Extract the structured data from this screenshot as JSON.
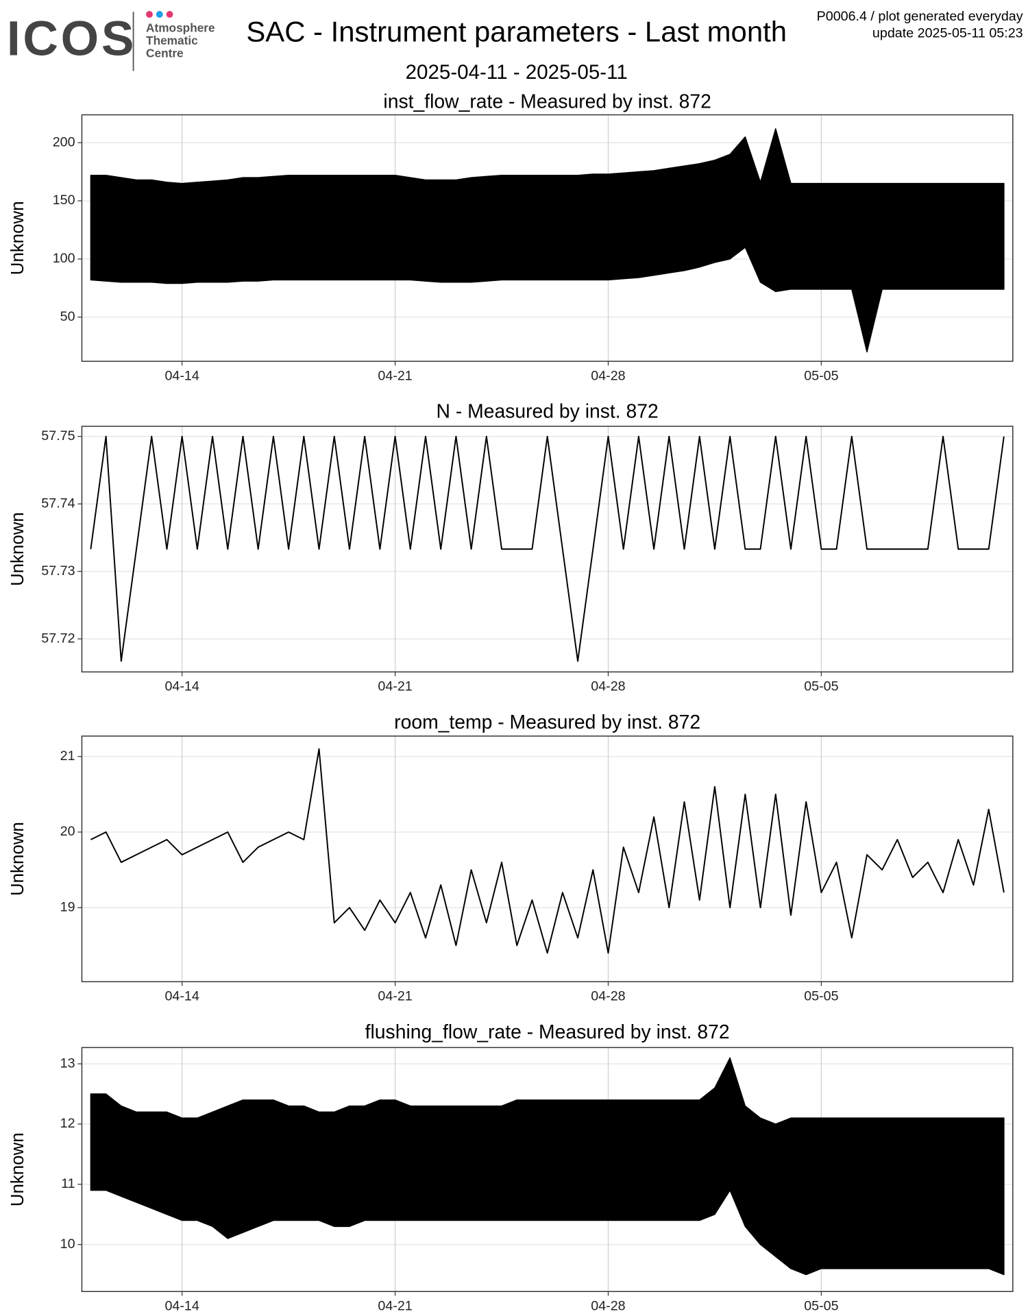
{
  "header": {
    "logo": "ICOS",
    "logo_lines": [
      "Atmosphere",
      "Thematic",
      "Centre"
    ],
    "title": "SAC - Instrument parameters - Last month",
    "subtitle": "2025-04-11 - 2025-05-11",
    "note": "P0006.4 / plot generated everyday",
    "update": "update  2025-05-11 05:23"
  },
  "chart_data": [
    {
      "type": "band",
      "title": "inst_flow_rate - Measured by inst. 872",
      "y_label": "Unknown",
      "color": "#000000",
      "grid": true,
      "x": [
        "2025-04-11 00:00",
        "2025-04-11 12:00",
        "2025-04-12 00:00",
        "2025-04-12 12:00",
        "2025-04-13 00:00",
        "2025-04-13 12:00",
        "2025-04-14 00:00",
        "2025-04-14 12:00",
        "2025-04-15 00:00",
        "2025-04-15 12:00",
        "2025-04-16 00:00",
        "2025-04-16 12:00",
        "2025-04-17 00:00",
        "2025-04-17 12:00",
        "2025-04-18 00:00",
        "2025-04-18 12:00",
        "2025-04-19 00:00",
        "2025-04-19 12:00",
        "2025-04-20 00:00",
        "2025-04-20 12:00",
        "2025-04-21 00:00",
        "2025-04-21 12:00",
        "2025-04-22 00:00",
        "2025-04-22 12:00",
        "2025-04-23 00:00",
        "2025-04-23 12:00",
        "2025-04-24 00:00",
        "2025-04-24 12:00",
        "2025-04-25 00:00",
        "2025-04-25 12:00",
        "2025-04-26 00:00",
        "2025-04-26 12:00",
        "2025-04-27 00:00",
        "2025-04-27 12:00",
        "2025-04-28 00:00",
        "2025-04-28 12:00",
        "2025-04-29 00:00",
        "2025-04-29 12:00",
        "2025-04-30 00:00",
        "2025-04-30 12:00",
        "2025-05-01 00:00",
        "2025-05-01 12:00",
        "2025-05-02 00:00",
        "2025-05-02 12:00",
        "2025-05-03 00:00",
        "2025-05-03 12:00",
        "2025-05-04 00:00",
        "2025-05-04 12:00",
        "2025-05-05 00:00",
        "2025-05-05 12:00",
        "2025-05-06 00:00",
        "2025-05-06 12:00",
        "2025-05-07 00:00",
        "2025-05-07 12:00",
        "2025-05-08 00:00",
        "2025-05-08 12:00",
        "2025-05-09 00:00",
        "2025-05-09 12:00",
        "2025-05-10 00:00",
        "2025-05-10 12:00",
        "2025-05-11 00:00"
      ],
      "series": [
        {
          "values": [
            82,
            81,
            80,
            80,
            80,
            79,
            79,
            80,
            80,
            80,
            81,
            81,
            82,
            82,
            82,
            82,
            82,
            82,
            82,
            82,
            82,
            82,
            81,
            80,
            80,
            80,
            81,
            82,
            82,
            82,
            82,
            82,
            82,
            82,
            82,
            83,
            84,
            86,
            88,
            90,
            93,
            97,
            100,
            110,
            80,
            72,
            74,
            74,
            74,
            74,
            74,
            20,
            74,
            74,
            74,
            74,
            74,
            74,
            74,
            74,
            74
          ]
        },
        {
          "values": [
            172,
            172,
            170,
            168,
            168,
            166,
            165,
            166,
            167,
            168,
            170,
            170,
            171,
            172,
            172,
            172,
            172,
            172,
            172,
            172,
            172,
            170,
            168,
            168,
            168,
            170,
            171,
            172,
            172,
            172,
            172,
            172,
            172,
            173,
            173,
            174,
            175,
            176,
            178,
            180,
            182,
            185,
            190,
            205,
            166,
            212,
            165,
            165,
            165,
            165,
            165,
            165,
            165,
            165,
            165,
            165,
            165,
            165,
            165,
            165,
            165
          ]
        }
      ],
      "xlim": [
        "2025-04-10 17:00",
        "2025-05-11 07:00"
      ],
      "xticks": [
        {
          "value": "2025-04-14 00:00",
          "label": "04-14"
        },
        {
          "value": "2025-04-21 00:00",
          "label": "04-21"
        },
        {
          "value": "2025-04-28 00:00",
          "label": "04-28"
        },
        {
          "value": "2025-05-05 00:00",
          "label": "05-05"
        }
      ],
      "ylim": [
        12,
        224
      ],
      "yticks": [
        50,
        100,
        150,
        200
      ]
    },
    {
      "type": "line",
      "title": "N - Measured by inst. 872",
      "y_label": "Unknown",
      "color": "#000000",
      "grid": true,
      "x": [
        "2025-04-11 00:00",
        "2025-04-11 12:00",
        "2025-04-12 00:00",
        "2025-04-12 12:00",
        "2025-04-13 00:00",
        "2025-04-13 12:00",
        "2025-04-14 00:00",
        "2025-04-14 12:00",
        "2025-04-15 00:00",
        "2025-04-15 12:00",
        "2025-04-16 00:00",
        "2025-04-16 12:00",
        "2025-04-17 00:00",
        "2025-04-17 12:00",
        "2025-04-18 00:00",
        "2025-04-18 12:00",
        "2025-04-19 00:00",
        "2025-04-19 12:00",
        "2025-04-20 00:00",
        "2025-04-20 12:00",
        "2025-04-21 00:00",
        "2025-04-21 12:00",
        "2025-04-22 00:00",
        "2025-04-22 12:00",
        "2025-04-23 00:00",
        "2025-04-23 12:00",
        "2025-04-24 00:00",
        "2025-04-24 12:00",
        "2025-04-25 00:00",
        "2025-04-25 12:00",
        "2025-04-26 00:00",
        "2025-04-26 12:00",
        "2025-04-27 00:00",
        "2025-04-27 12:00",
        "2025-04-28 00:00",
        "2025-04-28 12:00",
        "2025-04-29 00:00",
        "2025-04-29 12:00",
        "2025-04-30 00:00",
        "2025-04-30 12:00",
        "2025-05-01 00:00",
        "2025-05-01 12:00",
        "2025-05-02 00:00",
        "2025-05-02 12:00",
        "2025-05-03 00:00",
        "2025-05-03 12:00",
        "2025-05-04 00:00",
        "2025-05-04 12:00",
        "2025-05-05 00:00",
        "2025-05-05 12:00",
        "2025-05-06 00:00",
        "2025-05-06 12:00",
        "2025-05-07 00:00",
        "2025-05-07 12:00",
        "2025-05-08 00:00",
        "2025-05-08 12:00",
        "2025-05-09 00:00",
        "2025-05-09 12:00",
        "2025-05-10 00:00",
        "2025-05-10 12:00",
        "2025-05-11 00:00"
      ],
      "series": [
        {
          "values": [
            57.7333,
            57.75,
            57.7167,
            57.7333,
            57.75,
            57.7333,
            57.75,
            57.7333,
            57.75,
            57.7333,
            57.75,
            57.7333,
            57.75,
            57.7333,
            57.75,
            57.7333,
            57.75,
            57.7333,
            57.75,
            57.7333,
            57.75,
            57.7333,
            57.75,
            57.7333,
            57.75,
            57.7333,
            57.75,
            57.7333,
            57.7333,
            57.7333,
            57.75,
            57.7333,
            57.7167,
            57.7333,
            57.75,
            57.7333,
            57.75,
            57.7333,
            57.75,
            57.7333,
            57.75,
            57.7333,
            57.75,
            57.7333,
            57.7333,
            57.75,
            57.7333,
            57.75,
            57.7333,
            57.7333,
            57.75,
            57.7333,
            57.7333,
            57.7333,
            57.7333,
            57.7333,
            57.75,
            57.7333,
            57.7333,
            57.7333,
            57.75
          ]
        }
      ],
      "xlim": [
        "2025-04-10 17:00",
        "2025-05-11 07:00"
      ],
      "xticks": [
        {
          "value": "2025-04-14 00:00",
          "label": "04-14"
        },
        {
          "value": "2025-04-21 00:00",
          "label": "04-21"
        },
        {
          "value": "2025-04-28 00:00",
          "label": "04-28"
        },
        {
          "value": "2025-05-05 00:00",
          "label": "05-05"
        }
      ],
      "ylim": [
        57.7151,
        57.7515
      ],
      "yticks": [
        57.72,
        57.73,
        57.74,
        57.75
      ]
    },
    {
      "type": "line",
      "title": "room_temp - Measured by inst. 872",
      "y_label": "Unknown",
      "color": "#000000",
      "grid": true,
      "x": [
        "2025-04-11 00:00",
        "2025-04-11 12:00",
        "2025-04-12 00:00",
        "2025-04-12 12:00",
        "2025-04-13 00:00",
        "2025-04-13 12:00",
        "2025-04-14 00:00",
        "2025-04-14 12:00",
        "2025-04-15 00:00",
        "2025-04-15 12:00",
        "2025-04-16 00:00",
        "2025-04-16 12:00",
        "2025-04-17 00:00",
        "2025-04-17 12:00",
        "2025-04-18 00:00",
        "2025-04-18 12:00",
        "2025-04-19 00:00",
        "2025-04-19 12:00",
        "2025-04-20 00:00",
        "2025-04-20 12:00",
        "2025-04-21 00:00",
        "2025-04-21 12:00",
        "2025-04-22 00:00",
        "2025-04-22 12:00",
        "2025-04-23 00:00",
        "2025-04-23 12:00",
        "2025-04-24 00:00",
        "2025-04-24 12:00",
        "2025-04-25 00:00",
        "2025-04-25 12:00",
        "2025-04-26 00:00",
        "2025-04-26 12:00",
        "2025-04-27 00:00",
        "2025-04-27 12:00",
        "2025-04-28 00:00",
        "2025-04-28 12:00",
        "2025-04-29 00:00",
        "2025-04-29 12:00",
        "2025-04-30 00:00",
        "2025-04-30 12:00",
        "2025-05-01 00:00",
        "2025-05-01 12:00",
        "2025-05-02 00:00",
        "2025-05-02 12:00",
        "2025-05-03 00:00",
        "2025-05-03 12:00",
        "2025-05-04 00:00",
        "2025-05-04 12:00",
        "2025-05-05 00:00",
        "2025-05-05 12:00",
        "2025-05-06 00:00",
        "2025-05-06 12:00",
        "2025-05-07 00:00",
        "2025-05-07 12:00",
        "2025-05-08 00:00",
        "2025-05-08 12:00",
        "2025-05-09 00:00",
        "2025-05-09 12:00",
        "2025-05-10 00:00",
        "2025-05-10 12:00",
        "2025-05-11 00:00"
      ],
      "series": [
        {
          "values": [
            19.9,
            20.0,
            19.6,
            19.7,
            19.8,
            19.9,
            19.7,
            19.8,
            19.9,
            20.0,
            19.6,
            19.8,
            19.9,
            20.0,
            19.9,
            21.1,
            18.8,
            19.0,
            18.7,
            19.1,
            18.8,
            19.2,
            18.6,
            19.3,
            18.5,
            19.5,
            18.8,
            19.6,
            18.5,
            19.1,
            18.4,
            19.2,
            18.6,
            19.5,
            18.4,
            19.8,
            19.2,
            20.2,
            19.0,
            20.4,
            19.1,
            20.6,
            19.0,
            20.5,
            19.0,
            20.5,
            18.9,
            20.4,
            19.2,
            19.6,
            18.6,
            19.7,
            19.5,
            19.9,
            19.4,
            19.6,
            19.2,
            19.9,
            19.3,
            20.3,
            19.2
          ]
        }
      ],
      "xlim": [
        "2025-04-10 17:00",
        "2025-05-11 07:00"
      ],
      "xticks": [
        {
          "value": "2025-04-14 00:00",
          "label": "04-14"
        },
        {
          "value": "2025-04-21 00:00",
          "label": "04-21"
        },
        {
          "value": "2025-04-28 00:00",
          "label": "04-28"
        },
        {
          "value": "2025-05-05 00:00",
          "label": "05-05"
        }
      ],
      "ylim": [
        18.02,
        21.27
      ],
      "yticks": [
        19,
        20,
        21
      ]
    },
    {
      "type": "band",
      "title": "flushing_flow_rate - Measured by inst. 872",
      "y_label": "Unknown",
      "color": "#000000",
      "grid": true,
      "x": [
        "2025-04-11 00:00",
        "2025-04-11 12:00",
        "2025-04-12 00:00",
        "2025-04-12 12:00",
        "2025-04-13 00:00",
        "2025-04-13 12:00",
        "2025-04-14 00:00",
        "2025-04-14 12:00",
        "2025-04-15 00:00",
        "2025-04-15 12:00",
        "2025-04-16 00:00",
        "2025-04-16 12:00",
        "2025-04-17 00:00",
        "2025-04-17 12:00",
        "2025-04-18 00:00",
        "2025-04-18 12:00",
        "2025-04-19 00:00",
        "2025-04-19 12:00",
        "2025-04-20 00:00",
        "2025-04-20 12:00",
        "2025-04-21 00:00",
        "2025-04-21 12:00",
        "2025-04-22 00:00",
        "2025-04-22 12:00",
        "2025-04-23 00:00",
        "2025-04-23 12:00",
        "2025-04-24 00:00",
        "2025-04-24 12:00",
        "2025-04-25 00:00",
        "2025-04-25 12:00",
        "2025-04-26 00:00",
        "2025-04-26 12:00",
        "2025-04-27 00:00",
        "2025-04-27 12:00",
        "2025-04-28 00:00",
        "2025-04-28 12:00",
        "2025-04-29 00:00",
        "2025-04-29 12:00",
        "2025-04-30 00:00",
        "2025-04-30 12:00",
        "2025-05-01 00:00",
        "2025-05-01 12:00",
        "2025-05-02 00:00",
        "2025-05-02 12:00",
        "2025-05-03 00:00",
        "2025-05-03 12:00",
        "2025-05-04 00:00",
        "2025-05-04 12:00",
        "2025-05-05 00:00",
        "2025-05-05 12:00",
        "2025-05-06 00:00",
        "2025-05-06 12:00",
        "2025-05-07 00:00",
        "2025-05-07 12:00",
        "2025-05-08 00:00",
        "2025-05-08 12:00",
        "2025-05-09 00:00",
        "2025-05-09 12:00",
        "2025-05-10 00:00",
        "2025-05-10 12:00",
        "2025-05-11 00:00"
      ],
      "series": [
        {
          "values": [
            10.9,
            10.9,
            10.8,
            10.7,
            10.6,
            10.5,
            10.4,
            10.4,
            10.3,
            10.1,
            10.2,
            10.3,
            10.4,
            10.4,
            10.4,
            10.4,
            10.3,
            10.3,
            10.4,
            10.4,
            10.4,
            10.4,
            10.4,
            10.4,
            10.4,
            10.4,
            10.4,
            10.4,
            10.4,
            10.4,
            10.4,
            10.4,
            10.4,
            10.4,
            10.4,
            10.4,
            10.4,
            10.4,
            10.4,
            10.4,
            10.4,
            10.5,
            10.9,
            10.3,
            10.0,
            9.8,
            9.6,
            9.5,
            9.6,
            9.6,
            9.6,
            9.6,
            9.6,
            9.6,
            9.6,
            9.6,
            9.6,
            9.6,
            9.6,
            9.6,
            9.5
          ]
        },
        {
          "values": [
            12.5,
            12.5,
            12.3,
            12.2,
            12.2,
            12.2,
            12.1,
            12.1,
            12.2,
            12.3,
            12.4,
            12.4,
            12.4,
            12.3,
            12.3,
            12.2,
            12.2,
            12.3,
            12.3,
            12.4,
            12.4,
            12.3,
            12.3,
            12.3,
            12.3,
            12.3,
            12.3,
            12.3,
            12.4,
            12.4,
            12.4,
            12.4,
            12.4,
            12.4,
            12.4,
            12.4,
            12.4,
            12.4,
            12.4,
            12.4,
            12.4,
            12.6,
            13.1,
            12.3,
            12.1,
            12.0,
            12.1,
            12.1,
            12.1,
            12.1,
            12.1,
            12.1,
            12.1,
            12.1,
            12.1,
            12.1,
            12.1,
            12.1,
            12.1,
            12.1,
            12.1
          ]
        }
      ],
      "xlim": [
        "2025-04-10 17:00",
        "2025-05-11 07:00"
      ],
      "xticks": [
        {
          "value": "2025-04-14 00:00",
          "label": "04-14"
        },
        {
          "value": "2025-04-21 00:00",
          "label": "04-21"
        },
        {
          "value": "2025-04-28 00:00",
          "label": "04-28"
        },
        {
          "value": "2025-05-05 00:00",
          "label": "05-05"
        }
      ],
      "ylim": [
        9.22,
        13.27
      ],
      "yticks": [
        10,
        11,
        12,
        13
      ]
    }
  ]
}
